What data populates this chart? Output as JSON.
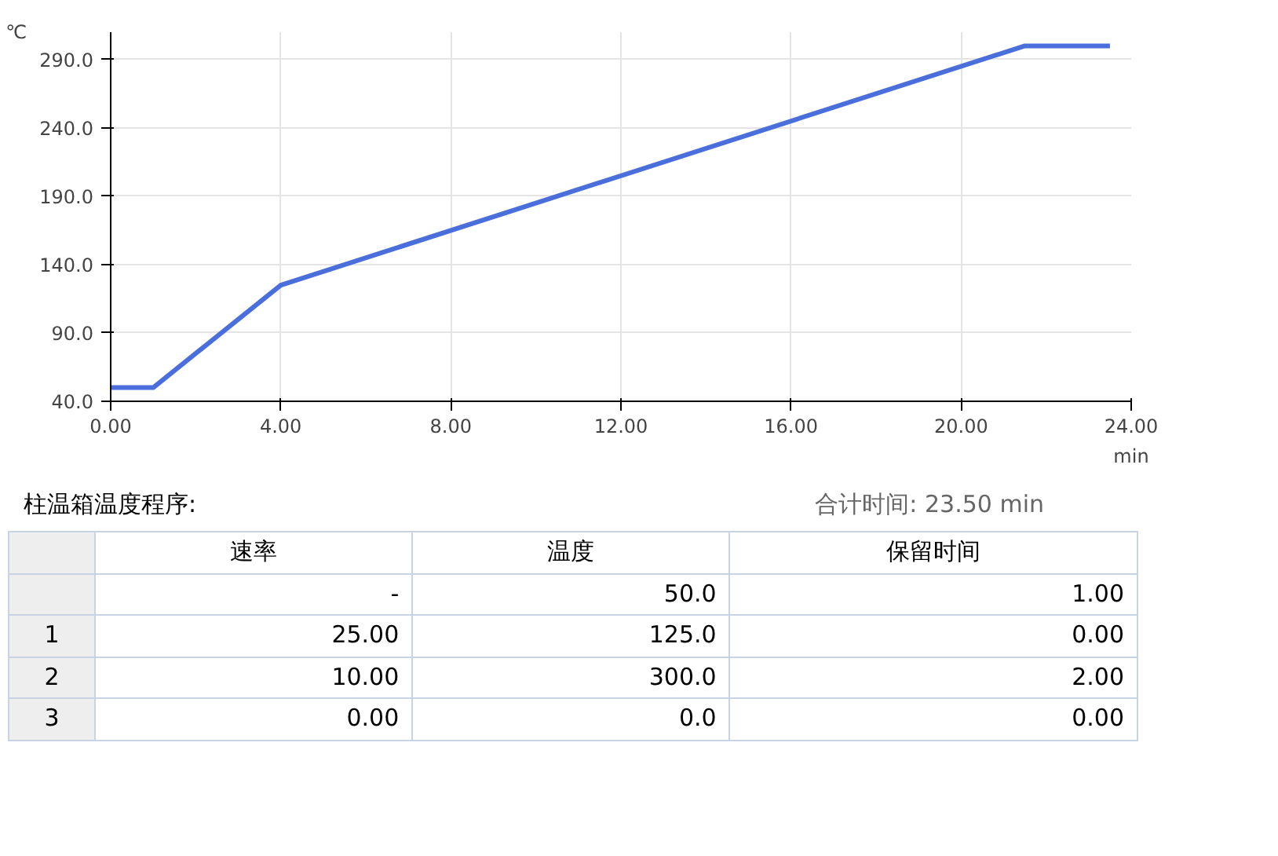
{
  "chart_data": {
    "type": "line",
    "ylabel": "℃",
    "xlabel": "min",
    "x": [
      0,
      1,
      4,
      21.5,
      23.5
    ],
    "series": [
      {
        "color": "#4a6fdc",
        "values": [
          50,
          50,
          125,
          300,
          300
        ]
      }
    ],
    "xlim": [
      0,
      24
    ],
    "ylim": [
      40,
      310
    ],
    "xticks": [
      {
        "value": 0,
        "label": "0.00"
      },
      {
        "value": 4,
        "label": "4.00"
      },
      {
        "value": 8,
        "label": "8.00"
      },
      {
        "value": 12,
        "label": "12.00"
      },
      {
        "value": 16,
        "label": "16.00"
      },
      {
        "value": 20,
        "label": "20.00"
      },
      {
        "value": 24,
        "label": "24.00"
      }
    ],
    "yticks": [
      {
        "value": 40,
        "label": "40.0"
      },
      {
        "value": 90,
        "label": "90.0"
      },
      {
        "value": 140,
        "label": "140.0"
      },
      {
        "value": 190,
        "label": "190.0"
      },
      {
        "value": 240,
        "label": "240.0"
      },
      {
        "value": 290,
        "label": "290.0"
      }
    ],
    "grid": true,
    "marker": "none",
    "line_style": "solid",
    "annotations": [
      "柱温箱温度程序:",
      "合计时间: 23.50 min",
      "速率",
      "温度",
      "保留时间",
      "-",
      "50.0",
      "1.00",
      "1",
      "25.00",
      "125.0",
      "0.00",
      "2",
      "10.00",
      "300.0",
      "2.00",
      "3",
      "0.00",
      "0.0",
      "0.00"
    ]
  }
}
